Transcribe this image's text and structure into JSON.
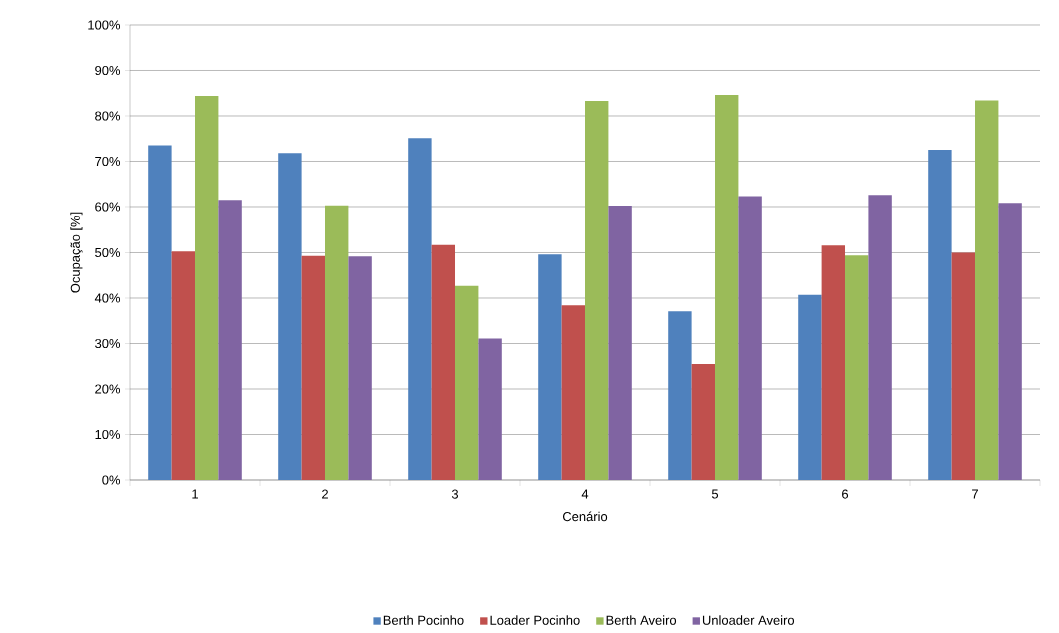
{
  "chart_data": {
    "type": "bar",
    "xlabel": "Cenário",
    "ylabel": "Ocupação [%]",
    "categories": [
      "1",
      "2",
      "3",
      "4",
      "5",
      "6",
      "7"
    ],
    "series": [
      {
        "name": "Berth Pocinho",
        "color": "#4f81bd",
        "values": [
          73.5,
          71.8,
          75.1,
          49.6,
          37.1,
          40.7,
          72.5
        ]
      },
      {
        "name": "Loader Pocinho",
        "color": "#c0504d",
        "values": [
          50.3,
          49.3,
          51.7,
          38.4,
          25.5,
          51.6,
          50.0
        ]
      },
      {
        "name": "Berth Aveiro",
        "color": "#9bbb59",
        "values": [
          84.4,
          60.3,
          42.7,
          83.3,
          84.6,
          49.4,
          83.4
        ]
      },
      {
        "name": "Unloader Aveiro",
        "color": "#8064a2",
        "values": [
          61.5,
          49.2,
          31.1,
          60.2,
          62.3,
          62.6,
          60.8
        ]
      }
    ],
    "ylim": [
      0,
      100
    ],
    "yticks": [
      {
        "value": 0,
        "label": "0%"
      },
      {
        "value": 10,
        "label": "10%"
      },
      {
        "value": 20,
        "label": "20%"
      },
      {
        "value": 30,
        "label": "30%"
      },
      {
        "value": 40,
        "label": "40%"
      },
      {
        "value": 50,
        "label": "50%"
      },
      {
        "value": 60,
        "label": "60%"
      },
      {
        "value": 70,
        "label": "70%"
      },
      {
        "value": 80,
        "label": "80%"
      },
      {
        "value": 90,
        "label": "90%"
      },
      {
        "value": 100,
        "label": "100%"
      }
    ],
    "grid": "y",
    "legend": "bottom"
  }
}
